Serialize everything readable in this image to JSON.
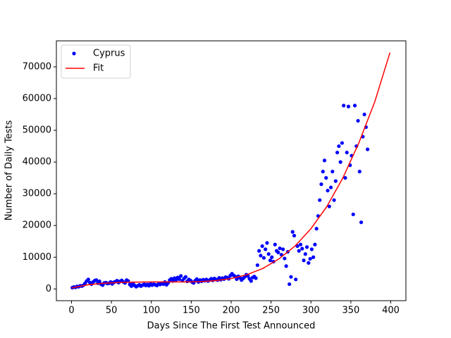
{
  "chart_data": {
    "type": "scatter",
    "xlabel": "Days Since The First Test Announced",
    "ylabel": "Number of Daily Tests",
    "xlim": [
      -19,
      419
    ],
    "ylim": [
      -3700,
      78200
    ],
    "xticks": [
      0,
      50,
      100,
      150,
      200,
      250,
      300,
      350,
      400
    ],
    "yticks": [
      0,
      10000,
      20000,
      30000,
      40000,
      50000,
      60000,
      70000
    ],
    "legend": "upper left",
    "series": [
      {
        "name": "Cyprus",
        "color": "#0000ff",
        "mode": "markers",
        "x": [
          1,
          3,
          5,
          7,
          9,
          11,
          13,
          15,
          17,
          19,
          21,
          23,
          25,
          27,
          29,
          31,
          33,
          35,
          37,
          39,
          41,
          43,
          45,
          47,
          49,
          51,
          53,
          55,
          57,
          59,
          61,
          63,
          65,
          67,
          69,
          71,
          73,
          75,
          77,
          79,
          81,
          83,
          85,
          87,
          89,
          91,
          93,
          95,
          97,
          99,
          101,
          103,
          105,
          107,
          109,
          111,
          113,
          115,
          117,
          119,
          121,
          123,
          125,
          127,
          129,
          131,
          133,
          135,
          137,
          139,
          141,
          143,
          145,
          147,
          149,
          151,
          153,
          155,
          157,
          159,
          161,
          163,
          165,
          167,
          169,
          171,
          173,
          175,
          177,
          179,
          181,
          183,
          185,
          187,
          189,
          191,
          193,
          195,
          197,
          199,
          201,
          203,
          205,
          207,
          209,
          211,
          213,
          215,
          217,
          219,
          221,
          223,
          225,
          227,
          229,
          231,
          233,
          235,
          237,
          239,
          241,
          243,
          245,
          247,
          249,
          251,
          253,
          255,
          257,
          259,
          261,
          263,
          265,
          267,
          269,
          271,
          273,
          275,
          277,
          279,
          281,
          283,
          285,
          287,
          289,
          291,
          293,
          295,
          297,
          299,
          301,
          303,
          305,
          307,
          309,
          311,
          313,
          315,
          317,
          319,
          321,
          323,
          325,
          327,
          329,
          331,
          333,
          335,
          337,
          339,
          341,
          343,
          345,
          347,
          349,
          351,
          353,
          355,
          357,
          359,
          361,
          363,
          365,
          367,
          369,
          371
        ],
        "values": [
          400,
          600,
          500,
          800,
          700,
          1000,
          900,
          1200,
          1800,
          2500,
          3000,
          2000,
          1500,
          2200,
          2600,
          2800,
          1800,
          2400,
          1500,
          1200,
          1900,
          2000,
          1700,
          1800,
          2200,
          1600,
          2100,
          2300,
          2600,
          2000,
          2400,
          2700,
          2200,
          1900,
          2800,
          2500,
          1400,
          900,
          1800,
          1100,
          700,
          1000,
          1300,
          900,
          1200,
          1500,
          1100,
          1400,
          1000,
          1600,
          1200,
          1500,
          1300,
          1100,
          1600,
          1400,
          1800,
          1500,
          2200,
          1300,
          1900,
          2800,
          3200,
          2500,
          3400,
          2900,
          3600,
          3100,
          4100,
          2600,
          3300,
          3800,
          2400,
          3000,
          2700,
          2200,
          1900,
          2600,
          3100,
          2200,
          2800,
          2400,
          2900,
          2600,
          3000,
          2500,
          2800,
          3200,
          2700,
          3300,
          3000,
          2800,
          3500,
          2900,
          3400,
          3100,
          3700,
          3600,
          3200,
          4200,
          4800,
          4300,
          3900,
          3100,
          4000,
          3500,
          2800,
          3300,
          3800,
          4500,
          4100,
          3200,
          2500,
          3600,
          3900,
          3400,
          7500,
          12000,
          10500,
          13500,
          9800,
          12500,
          14500,
          11000,
          9000,
          10000,
          8600,
          14000,
          12000,
          11500,
          12800,
          10800,
          12500,
          9600,
          7200,
          11700,
          1500,
          3800,
          18000,
          16800,
          3000,
          13500,
          12000,
          14000,
          12700,
          9000,
          11000,
          13200,
          8200,
          9500,
          12500,
          10000,
          14000,
          19000,
          23000,
          28000,
          33000,
          37000,
          40500,
          35000,
          31000,
          26000,
          32000,
          37000,
          28000,
          34000,
          43000,
          45000,
          40000,
          46000,
          57800,
          35000,
          43000,
          57500,
          39000,
          42000,
          23500,
          57800,
          45000,
          53000,
          37000,
          21000,
          48000,
          55000,
          51000,
          44000
        ]
      },
      {
        "name": "Fit",
        "color": "#ff0000",
        "mode": "line",
        "x": [
          0,
          20,
          40,
          60,
          80,
          100,
          120,
          140,
          160,
          180,
          200,
          220,
          240,
          260,
          280,
          300,
          320,
          340,
          360,
          380,
          399
        ],
        "values": [
          300,
          1300,
          1800,
          2050,
          2150,
          2200,
          2200,
          2200,
          2300,
          2600,
          3300,
          4500,
          6500,
          9500,
          13500,
          19000,
          26000,
          35000,
          46000,
          59000,
          74500
        ]
      }
    ]
  }
}
